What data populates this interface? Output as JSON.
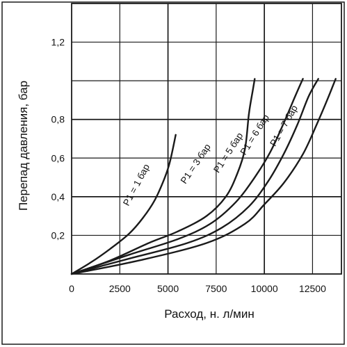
{
  "chart_data": {
    "type": "line",
    "xlabel": "Расход, н. л/мин",
    "ylabel": "Перепад давления, бар",
    "xlim": [
      0,
      14000
    ],
    "ylim": [
      0,
      1.4
    ],
    "x_ticks": [
      {
        "value": 0,
        "label": "0"
      },
      {
        "value": 2500,
        "label": "2500"
      },
      {
        "value": 5000,
        "label": "5000"
      },
      {
        "value": 7500,
        "label": "7500"
      },
      {
        "value": 10000,
        "label": "10000"
      },
      {
        "value": 12500,
        "label": "12500"
      }
    ],
    "y_ticks": [
      {
        "value": 0.2,
        "label": "0,2"
      },
      {
        "value": 0.4,
        "label": "0,4"
      },
      {
        "value": 0.6,
        "label": "0,6"
      },
      {
        "value": 0.8,
        "label": "0,8"
      },
      {
        "value": 1.2,
        "label": "1,2"
      }
    ],
    "grid": true,
    "series": [
      {
        "name": "P1 = 1 бар",
        "points": [
          [
            0,
            0
          ],
          [
            1000,
            0.06
          ],
          [
            2000,
            0.13
          ],
          [
            3000,
            0.21
          ],
          [
            3700,
            0.29
          ],
          [
            4300,
            0.38
          ],
          [
            4800,
            0.49
          ],
          [
            5100,
            0.58
          ],
          [
            5400,
            0.72
          ]
        ]
      },
      {
        "name": "P1 = 3 бар",
        "points": [
          [
            0,
            0
          ],
          [
            2000,
            0.07
          ],
          [
            4000,
            0.16
          ],
          [
            5500,
            0.22
          ],
          [
            7000,
            0.3
          ],
          [
            8000,
            0.4
          ],
          [
            8600,
            0.52
          ],
          [
            9000,
            0.65
          ],
          [
            9200,
            0.83
          ],
          [
            9400,
            0.95
          ],
          [
            9500,
            1.01
          ]
        ]
      },
      {
        "name": "P1 = 5 бар",
        "points": [
          [
            0,
            0
          ],
          [
            3000,
            0.1
          ],
          [
            5500,
            0.18
          ],
          [
            7200,
            0.26
          ],
          [
            8500,
            0.37
          ],
          [
            9500,
            0.5
          ],
          [
            10300,
            0.63
          ],
          [
            11000,
            0.78
          ],
          [
            11600,
            0.92
          ],
          [
            12000,
            1.01
          ]
        ]
      },
      {
        "name": "P1 = 6 бар",
        "points": [
          [
            0,
            0
          ],
          [
            3000,
            0.08
          ],
          [
            6000,
            0.16
          ],
          [
            7800,
            0.24
          ],
          [
            9200,
            0.35
          ],
          [
            10200,
            0.48
          ],
          [
            11000,
            0.62
          ],
          [
            11700,
            0.77
          ],
          [
            12300,
            0.92
          ],
          [
            12800,
            1.01
          ]
        ]
      },
      {
        "name": "P1 = 7 бар",
        "points": [
          [
            0,
            0
          ],
          [
            3500,
            0.07
          ],
          [
            7000,
            0.16
          ],
          [
            9000,
            0.26
          ],
          [
            10000,
            0.36
          ],
          [
            11000,
            0.47
          ],
          [
            12000,
            0.62
          ],
          [
            12700,
            0.77
          ],
          [
            13300,
            0.91
          ],
          [
            13700,
            1.01
          ]
        ]
      }
    ]
  }
}
